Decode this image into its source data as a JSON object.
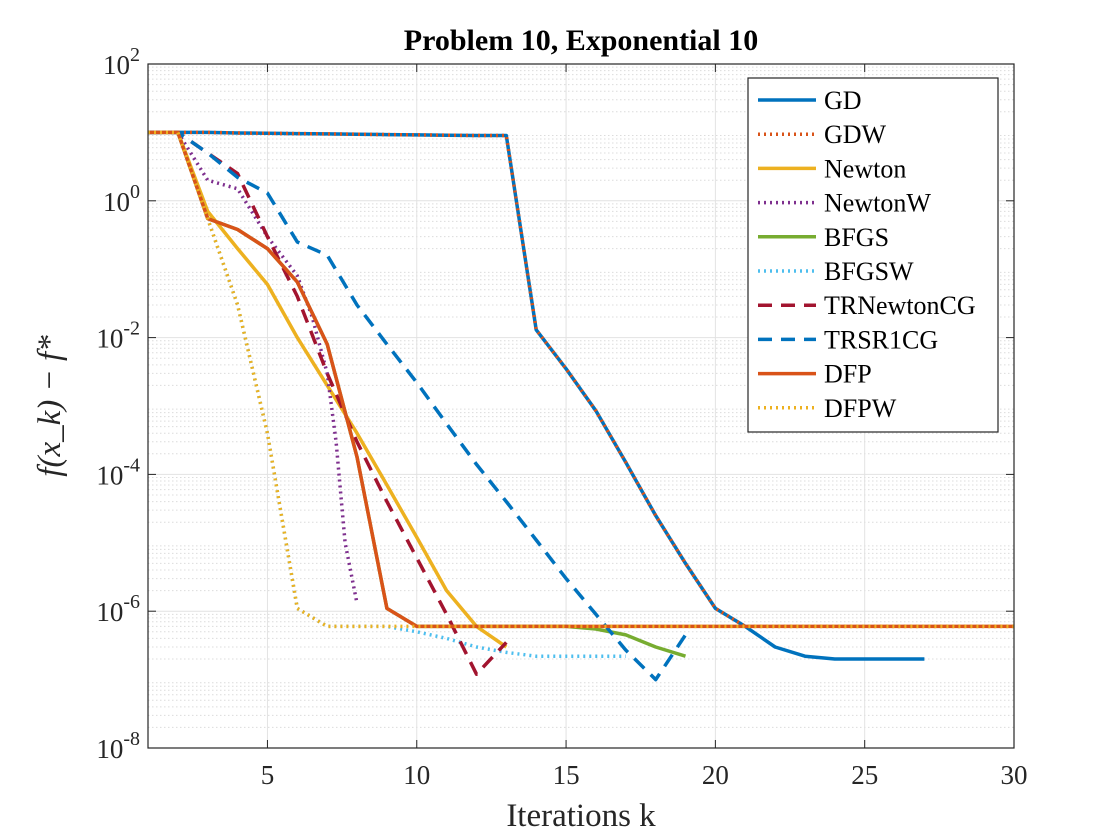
{
  "chart_data": {
    "type": "line",
    "title": "Problem 10, Exponential 10",
    "xlabel": "Iterations k",
    "ylabel": "f(x_k) − f*",
    "xlim": [
      1,
      30
    ],
    "ylim_log10": [
      -8,
      2
    ],
    "y_scale": "log",
    "x_ticks": [
      5,
      10,
      15,
      20,
      25,
      30
    ],
    "y_ticks": [
      "10^2",
      "10^0",
      "10^-2",
      "10^-4",
      "10^-6",
      "10^-8"
    ],
    "grid": true,
    "legend_position": "top-right",
    "series": [
      {
        "name": "GD",
        "color": "#0072BD",
        "style": "solid",
        "x": [
          1,
          2,
          3,
          4,
          5,
          6,
          7,
          8,
          9,
          10,
          11,
          12,
          13,
          14,
          15,
          16,
          17,
          18,
          19,
          20,
          21,
          22,
          23,
          24,
          25,
          26,
          27
        ],
        "y": [
          10,
          10,
          10,
          9.8,
          9.7,
          9.6,
          9.5,
          9.4,
          9.3,
          9.2,
          9.1,
          9.0,
          9.0,
          0.013,
          0.0035,
          0.00085,
          0.00015,
          2.5e-05,
          5e-06,
          1.1e-06,
          6e-07,
          3e-07,
          2.2e-07,
          2e-07,
          2e-07,
          2e-07,
          2e-07
        ]
      },
      {
        "name": "GDW",
        "color": "#D95319",
        "style": "dotted",
        "x": [
          1,
          2,
          3,
          4,
          5,
          6,
          7,
          8,
          9,
          10,
          11,
          12,
          13,
          14,
          15,
          16,
          17,
          18,
          19,
          20,
          21,
          22,
          23,
          24,
          25,
          26,
          27,
          28,
          29,
          30
        ],
        "y": [
          10,
          10,
          10,
          9.8,
          9.7,
          9.6,
          9.5,
          9.4,
          9.3,
          9.2,
          9.1,
          9.0,
          9.0,
          0.013,
          0.0035,
          0.00085,
          0.00015,
          2.5e-05,
          5e-06,
          1.1e-06,
          6e-07,
          6e-07,
          6e-07,
          6e-07,
          6e-07,
          6e-07,
          6e-07,
          6e-07,
          6e-07,
          6e-07
        ]
      },
      {
        "name": "Newton",
        "color": "#EDB120",
        "style": "solid",
        "x": [
          1,
          2,
          3,
          4,
          5,
          6,
          7,
          8,
          9,
          10,
          11,
          12,
          13
        ],
        "y": [
          10,
          10,
          0.7,
          0.2,
          0.06,
          0.01,
          0.002,
          0.0004,
          7e-05,
          1.2e-05,
          2e-06,
          6e-07,
          3e-07
        ]
      },
      {
        "name": "NewtonW",
        "color": "#7E2F8E",
        "style": "dotted",
        "x": [
          1,
          2,
          3,
          4,
          5,
          6,
          6.5,
          7,
          7.3,
          7.6,
          8
        ],
        "y": [
          10,
          10,
          2,
          1.5,
          0.3,
          0.08,
          0.02,
          0.003,
          0.0003,
          1e-05,
          1.3e-06
        ]
      },
      {
        "name": "BFGS",
        "color": "#77AC30",
        "style": "solid",
        "x": [
          1,
          2,
          3,
          4,
          5,
          6,
          7,
          8,
          9,
          10,
          11,
          12,
          13,
          14,
          15,
          16,
          17,
          18,
          19
        ],
        "y": [
          10,
          10,
          0.55,
          0.38,
          0.2,
          0.065,
          0.008,
          0.00018,
          1.1e-06,
          6e-07,
          6e-07,
          6e-07,
          6e-07,
          6e-07,
          6e-07,
          5.5e-07,
          4.5e-07,
          3e-07,
          2.2e-07
        ]
      },
      {
        "name": "BFGSW",
        "color": "#4DBEEE",
        "style": "dotted",
        "x": [
          1,
          2,
          3,
          4,
          5,
          6,
          7,
          8,
          9,
          10,
          11,
          12,
          13,
          14,
          15,
          16,
          17
        ],
        "y": [
          10,
          10,
          0.55,
          0.03,
          0.0004,
          1.1e-06,
          6e-07,
          6e-07,
          6e-07,
          5e-07,
          4e-07,
          3e-07,
          2.5e-07,
          2.2e-07,
          2.2e-07,
          2.2e-07,
          2.2e-07
        ]
      },
      {
        "name": "TRNewtonCG",
        "color": "#A2142F",
        "style": "dashed",
        "x": [
          1,
          2,
          3,
          4,
          5,
          6,
          7,
          8,
          9,
          10,
          11,
          12,
          13
        ],
        "y": [
          10,
          10,
          5,
          2.5,
          0.3,
          0.04,
          0.003,
          0.0003,
          4e-05,
          6e-06,
          9e-07,
          1.2e-07,
          3.5e-07
        ]
      },
      {
        "name": "TRSR1CG",
        "color": "#0072BD",
        "style": "dashed",
        "x": [
          1,
          2,
          3,
          4,
          5,
          6,
          7,
          8,
          9,
          10,
          11,
          12,
          13,
          14,
          15,
          16,
          17,
          18,
          19
        ],
        "y": [
          10,
          10,
          5,
          2.2,
          1.3,
          0.25,
          0.16,
          0.03,
          0.008,
          0.0022,
          0.00055,
          0.00014,
          4e-05,
          1.1e-05,
          3e-06,
          9e-07,
          2.7e-07,
          1e-07,
          4.5e-07
        ]
      },
      {
        "name": "DFP",
        "color": "#D95319",
        "style": "solid",
        "x": [
          1,
          2,
          3,
          4,
          5,
          6,
          7,
          8,
          9,
          10,
          11,
          12,
          13,
          14,
          15,
          16,
          17,
          18,
          19,
          20,
          21,
          22,
          23,
          24,
          25,
          26,
          27,
          28,
          29,
          30
        ],
        "y": [
          10,
          10,
          0.55,
          0.38,
          0.2,
          0.065,
          0.008,
          0.00018,
          1.1e-06,
          6e-07,
          6e-07,
          6e-07,
          6e-07,
          6e-07,
          6e-07,
          6e-07,
          6e-07,
          6e-07,
          6e-07,
          6e-07,
          6e-07,
          6e-07,
          6e-07,
          6e-07,
          6e-07,
          6e-07,
          6e-07,
          6e-07,
          6e-07,
          6e-07
        ]
      },
      {
        "name": "DFPW",
        "color": "#EDB120",
        "style": "dotted",
        "x": [
          1,
          2,
          3,
          4,
          5,
          6,
          7,
          8,
          9,
          10,
          11,
          12,
          13,
          14,
          15,
          16,
          17,
          18,
          19,
          20,
          21,
          22,
          23,
          24,
          25,
          26,
          27,
          28,
          29,
          30
        ],
        "y": [
          10,
          10,
          0.55,
          0.03,
          0.0004,
          1.1e-06,
          6e-07,
          6e-07,
          6e-07,
          6e-07,
          6e-07,
          6e-07,
          6e-07,
          6e-07,
          6e-07,
          6e-07,
          6e-07,
          6e-07,
          6e-07,
          6e-07,
          6e-07,
          6e-07,
          6e-07,
          6e-07,
          6e-07,
          6e-07,
          6e-07,
          6e-07,
          6e-07,
          6e-07
        ]
      }
    ]
  }
}
